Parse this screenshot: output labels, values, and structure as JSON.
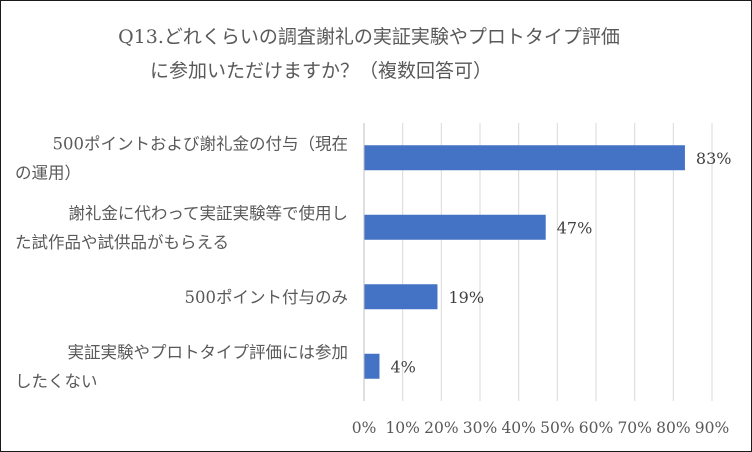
{
  "chart_data": {
    "type": "bar",
    "orientation": "horizontal",
    "title_lines": [
      "Q13.どれくらいの調査謝礼の実証実験やプロトタイプ評価",
      "に参加いただけますか？（複数回答可）"
    ],
    "categories": [
      [
        "500ポイントおよび謝礼金の付与（現在",
        "の運用）"
      ],
      [
        "謝礼金に代わって実証実験等で使用し",
        "た試作品や試供品がもらえる"
      ],
      [
        "500ポイント付与のみ"
      ],
      [
        "実証実験やプロトタイプ評価には参加",
        "したくない"
      ]
    ],
    "values": [
      83,
      47,
      19,
      4
    ],
    "data_labels": [
      "83%",
      "47%",
      "19%",
      "4%"
    ],
    "xlim": [
      0,
      90
    ],
    "x_ticks": [
      0,
      10,
      20,
      30,
      40,
      50,
      60,
      70,
      80,
      90
    ],
    "x_tick_labels": [
      "0%",
      "10%",
      "20%",
      "30%",
      "40%",
      "50%",
      "60%",
      "70%",
      "80%",
      "90%"
    ],
    "grid": true,
    "legend": "none",
    "bar_color": "#4472c4",
    "grid_color": "#d9d9d9",
    "text_color": "#595959"
  }
}
